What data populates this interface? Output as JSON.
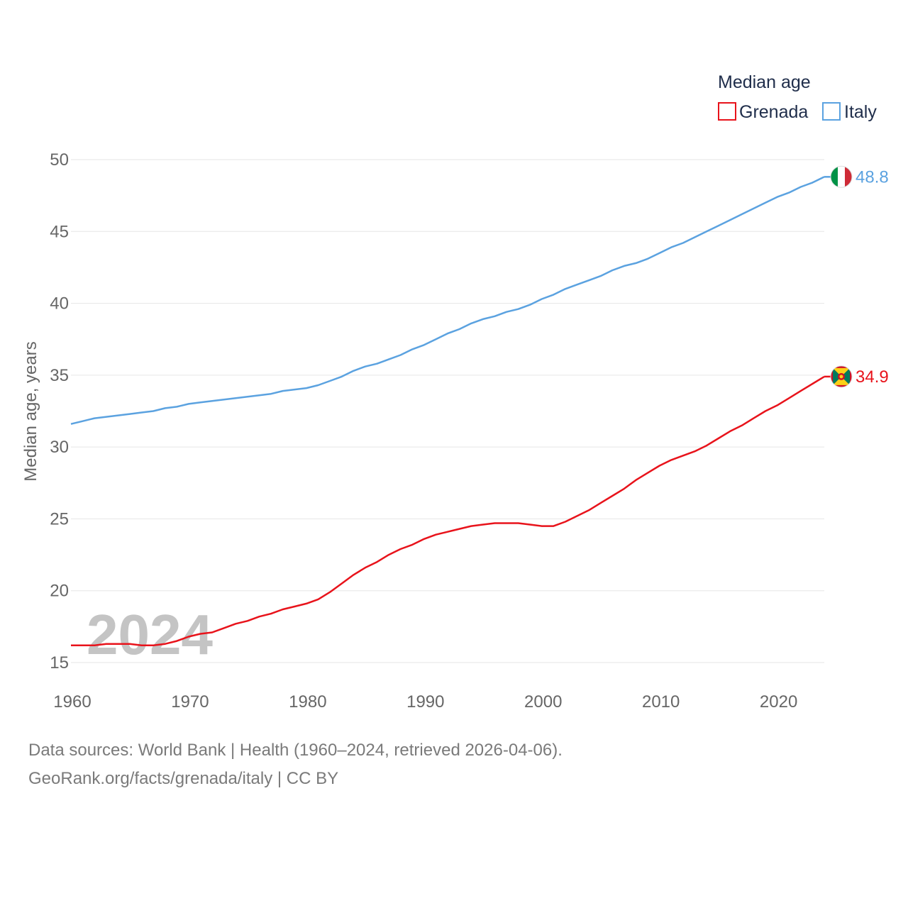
{
  "chart_data": {
    "type": "line",
    "legend_title": "Median age",
    "ylabel": "Median age, years",
    "xlabel": "",
    "xlim": [
      1960,
      2024
    ],
    "ylim": [
      15,
      50
    ],
    "yticks": [
      15,
      20,
      25,
      30,
      35,
      40,
      45,
      50
    ],
    "xticks": [
      1960,
      1970,
      1980,
      1990,
      2000,
      2010,
      2020
    ],
    "watermark_year": "2024",
    "legend_position": "top-right",
    "grid": true,
    "series": [
      {
        "name": "Grenada",
        "color": "#e8131b",
        "end_label": "34.9",
        "flag": "grenada-flag",
        "x": [
          1960,
          1961,
          1962,
          1963,
          1964,
          1965,
          1966,
          1967,
          1968,
          1969,
          1970,
          1971,
          1972,
          1973,
          1974,
          1975,
          1976,
          1977,
          1978,
          1979,
          1980,
          1981,
          1982,
          1983,
          1984,
          1985,
          1986,
          1987,
          1988,
          1989,
          1990,
          1991,
          1992,
          1993,
          1994,
          1995,
          1996,
          1997,
          1998,
          1999,
          2000,
          2001,
          2002,
          2003,
          2004,
          2005,
          2006,
          2007,
          2008,
          2009,
          2010,
          2011,
          2012,
          2013,
          2014,
          2015,
          2016,
          2017,
          2018,
          2019,
          2020,
          2021,
          2022,
          2023,
          2024
        ],
        "values": [
          16.2,
          16.2,
          16.2,
          16.3,
          16.3,
          16.3,
          16.2,
          16.2,
          16.3,
          16.5,
          16.8,
          17.0,
          17.1,
          17.4,
          17.7,
          17.9,
          18.2,
          18.4,
          18.7,
          18.9,
          19.1,
          19.4,
          19.9,
          20.5,
          21.1,
          21.6,
          22.0,
          22.5,
          22.9,
          23.2,
          23.6,
          23.9,
          24.1,
          24.3,
          24.5,
          24.6,
          24.7,
          24.7,
          24.7,
          24.6,
          24.5,
          24.5,
          24.8,
          25.2,
          25.6,
          26.1,
          26.6,
          27.1,
          27.7,
          28.2,
          28.7,
          29.1,
          29.4,
          29.7,
          30.1,
          30.6,
          31.1,
          31.5,
          32.0,
          32.5,
          32.9,
          33.4,
          33.9,
          34.4,
          34.9
        ]
      },
      {
        "name": "Italy",
        "color": "#5ba2e0",
        "end_label": "48.8",
        "flag": "italy-flag",
        "x": [
          1960,
          1961,
          1962,
          1963,
          1964,
          1965,
          1966,
          1967,
          1968,
          1969,
          1970,
          1971,
          1972,
          1973,
          1974,
          1975,
          1976,
          1977,
          1978,
          1979,
          1980,
          1981,
          1982,
          1983,
          1984,
          1985,
          1986,
          1987,
          1988,
          1989,
          1990,
          1991,
          1992,
          1993,
          1994,
          1995,
          1996,
          1997,
          1998,
          1999,
          2000,
          2001,
          2002,
          2003,
          2004,
          2005,
          2006,
          2007,
          2008,
          2009,
          2010,
          2011,
          2012,
          2013,
          2014,
          2015,
          2016,
          2017,
          2018,
          2019,
          2020,
          2021,
          2022,
          2023,
          2024
        ],
        "values": [
          31.6,
          31.8,
          32.0,
          32.1,
          32.2,
          32.3,
          32.4,
          32.5,
          32.7,
          32.8,
          33.0,
          33.1,
          33.2,
          33.3,
          33.4,
          33.5,
          33.6,
          33.7,
          33.9,
          34.0,
          34.1,
          34.3,
          34.6,
          34.9,
          35.3,
          35.6,
          35.8,
          36.1,
          36.4,
          36.8,
          37.1,
          37.5,
          37.9,
          38.2,
          38.6,
          38.9,
          39.1,
          39.4,
          39.6,
          39.9,
          40.3,
          40.6,
          41.0,
          41.3,
          41.6,
          41.9,
          42.3,
          42.6,
          42.8,
          43.1,
          43.5,
          43.9,
          44.2,
          44.6,
          45.0,
          45.4,
          45.8,
          46.2,
          46.6,
          47.0,
          47.4,
          47.7,
          48.1,
          48.4,
          48.8
        ]
      }
    ]
  },
  "footer": {
    "line1": "Data sources: World Bank | Health (1960–2024, retrieved 2026-04-06).",
    "line2": "GeoRank.org/facts/grenada/italy | CC BY"
  }
}
